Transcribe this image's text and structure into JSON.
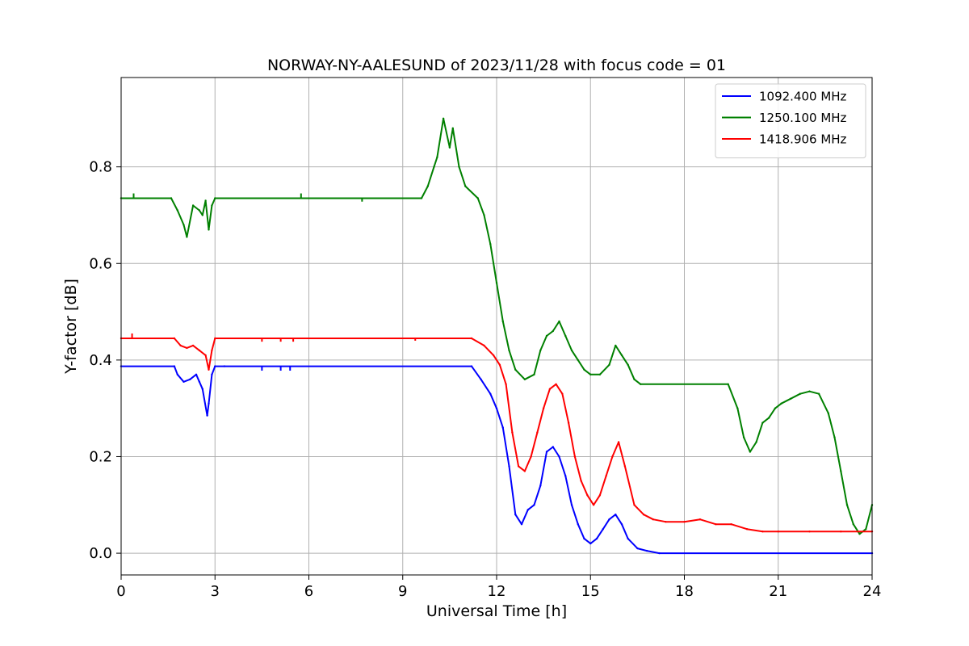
{
  "chart_data": {
    "type": "line",
    "title": "NORWAY-NY-AALESUND of 2023/11/28 with focus code = 01",
    "xlabel": "Universal Time [h]",
    "ylabel": "Y-factor [dB]",
    "xlim": [
      0,
      24
    ],
    "ylim": [
      -0.045,
      0.985
    ],
    "xticks": [
      0,
      3,
      6,
      9,
      12,
      15,
      18,
      21,
      24
    ],
    "yticks": [
      0.0,
      0.2,
      0.4,
      0.6,
      0.8
    ],
    "ytick_labels": [
      "0.0",
      "0.2",
      "0.4",
      "0.6",
      "0.8"
    ],
    "grid": true,
    "legend_position": "top-right",
    "series": [
      {
        "name": "1092.400 MHz",
        "color": "#0000ff",
        "x": [
          0,
          1.7,
          1.8,
          2.0,
          2.2,
          2.4,
          2.5,
          2.6,
          2.75,
          2.8,
          2.9,
          3.0,
          3.3,
          11.2,
          11.5,
          11.8,
          12.0,
          12.2,
          12.4,
          12.6,
          12.8,
          13.0,
          13.2,
          13.4,
          13.6,
          13.8,
          14.0,
          14.2,
          14.4,
          14.6,
          14.8,
          15.0,
          15.2,
          15.4,
          15.6,
          15.8,
          16.0,
          16.2,
          16.5,
          16.8,
          17.2,
          24
        ],
        "y": [
          0.387,
          0.387,
          0.37,
          0.355,
          0.36,
          0.37,
          0.355,
          0.34,
          0.285,
          0.31,
          0.37,
          0.387,
          0.387,
          0.387,
          0.36,
          0.33,
          0.3,
          0.26,
          0.18,
          0.08,
          0.06,
          0.09,
          0.1,
          0.14,
          0.21,
          0.22,
          0.2,
          0.16,
          0.1,
          0.06,
          0.03,
          0.02,
          0.03,
          0.05,
          0.07,
          0.08,
          0.06,
          0.03,
          0.01,
          0.005,
          0.0,
          0.0
        ]
      },
      {
        "name": "1250.100 MHz",
        "color": "#008000",
        "x": [
          0,
          1.6,
          1.8,
          2.0,
          2.1,
          2.3,
          2.5,
          2.6,
          2.7,
          2.8,
          2.9,
          3.0,
          9.6,
          9.8,
          10.0,
          10.1,
          10.3,
          10.5,
          10.6,
          10.8,
          11.0,
          11.4,
          11.6,
          11.8,
          12.0,
          12.2,
          12.4,
          12.6,
          12.9,
          13.2,
          13.4,
          13.6,
          13.8,
          14.0,
          14.2,
          14.4,
          14.6,
          14.8,
          15.0,
          15.3,
          15.6,
          15.8,
          16.0,
          16.2,
          16.4,
          16.6,
          19.4,
          19.7,
          19.9,
          20.1,
          20.3,
          20.5,
          20.7,
          20.9,
          21.1,
          21.4,
          21.7,
          22.0,
          22.3,
          22.6,
          22.8,
          23.0,
          23.2,
          23.4,
          23.6,
          23.8,
          24
        ],
        "y": [
          0.735,
          0.735,
          0.71,
          0.68,
          0.655,
          0.72,
          0.71,
          0.7,
          0.73,
          0.67,
          0.72,
          0.735,
          0.735,
          0.76,
          0.8,
          0.82,
          0.9,
          0.84,
          0.88,
          0.8,
          0.76,
          0.735,
          0.7,
          0.64,
          0.56,
          0.48,
          0.42,
          0.38,
          0.36,
          0.37,
          0.42,
          0.45,
          0.46,
          0.48,
          0.45,
          0.42,
          0.4,
          0.38,
          0.37,
          0.37,
          0.39,
          0.43,
          0.41,
          0.39,
          0.36,
          0.35,
          0.35,
          0.3,
          0.24,
          0.21,
          0.23,
          0.27,
          0.28,
          0.3,
          0.31,
          0.32,
          0.33,
          0.335,
          0.33,
          0.29,
          0.24,
          0.17,
          0.1,
          0.06,
          0.04,
          0.05,
          0.1
        ]
      },
      {
        "name": "1418.906 MHz",
        "color": "#ff0000",
        "x": [
          0,
          1.7,
          1.9,
          2.1,
          2.3,
          2.5,
          2.7,
          2.8,
          2.9,
          3.0,
          11.2,
          11.6,
          11.9,
          12.1,
          12.3,
          12.5,
          12.7,
          12.9,
          13.1,
          13.3,
          13.5,
          13.7,
          13.9,
          14.1,
          14.3,
          14.5,
          14.7,
          14.9,
          15.1,
          15.3,
          15.5,
          15.7,
          15.9,
          16.1,
          16.4,
          16.7,
          17.0,
          17.4,
          18.0,
          18.5,
          19.0,
          19.5,
          20.0,
          20.5,
          21.0,
          22.0,
          23.0,
          24
        ],
        "y": [
          0.445,
          0.445,
          0.43,
          0.425,
          0.43,
          0.42,
          0.41,
          0.38,
          0.42,
          0.445,
          0.445,
          0.43,
          0.41,
          0.39,
          0.35,
          0.25,
          0.18,
          0.17,
          0.2,
          0.25,
          0.3,
          0.34,
          0.35,
          0.33,
          0.27,
          0.2,
          0.15,
          0.12,
          0.1,
          0.12,
          0.16,
          0.2,
          0.23,
          0.18,
          0.1,
          0.08,
          0.07,
          0.065,
          0.065,
          0.07,
          0.06,
          0.06,
          0.05,
          0.045,
          0.045,
          0.045,
          0.045,
          0.045
        ]
      }
    ],
    "markers": [
      {
        "series": 1,
        "x": 0.4,
        "y": 0.745
      },
      {
        "series": 1,
        "x": 5.75,
        "y": 0.745
      },
      {
        "series": 1,
        "x": 7.7,
        "y": 0.728
      },
      {
        "series": 2,
        "x": 0.35,
        "y": 0.455
      },
      {
        "series": 2,
        "x": 4.5,
        "y": 0.438
      },
      {
        "series": 2,
        "x": 5.1,
        "y": 0.438
      },
      {
        "series": 2,
        "x": 5.5,
        "y": 0.438
      },
      {
        "series": 2,
        "x": 9.4,
        "y": 0.44
      },
      {
        "series": 0,
        "x": 4.5,
        "y": 0.378
      },
      {
        "series": 0,
        "x": 5.1,
        "y": 0.378
      },
      {
        "series": 0,
        "x": 5.4,
        "y": 0.378
      }
    ]
  }
}
